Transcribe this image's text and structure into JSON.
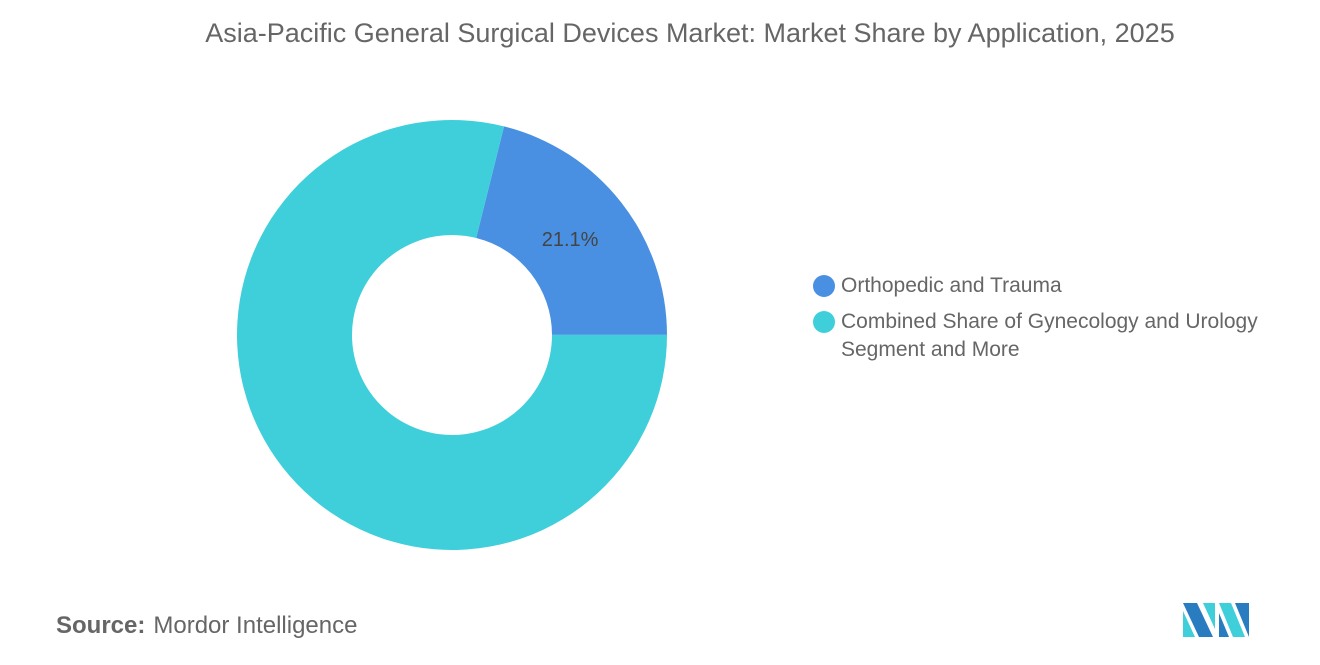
{
  "chart_data": {
    "type": "pie",
    "donut": true,
    "title": "Asia-Pacific General Surgical Devices Market: Market Share by Application, 2025",
    "slices": [
      {
        "name": "Orthopedic and Trauma",
        "value": 21.1,
        "label": "21.1%",
        "color": "#4a90e2"
      },
      {
        "name": "Combined Share of Gynecology and Urology Segment and More",
        "value": 78.9,
        "label": "",
        "color": "#3ecfda"
      }
    ],
    "legend_position": "right"
  },
  "source": {
    "label": "Source:",
    "value": "Mordor Intelligence"
  },
  "logo": {
    "text": "Mordor Intelligence"
  }
}
